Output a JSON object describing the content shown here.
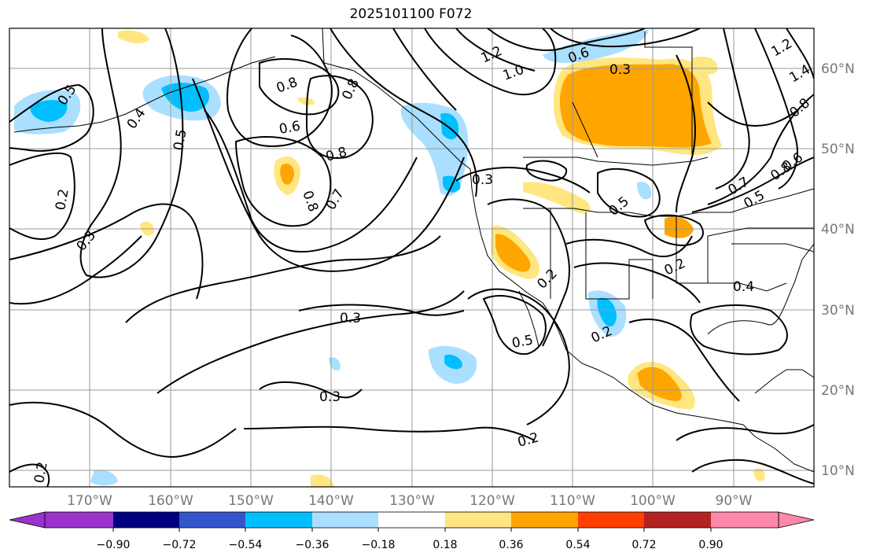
{
  "title": "2025101100 F072",
  "lon_labels": [
    "170°W",
    "160°W",
    "150°W",
    "140°W",
    "130°W",
    "120°W",
    "110°W",
    "100°W",
    "90°W"
  ],
  "lat_labels": [
    "60°N",
    "50°N",
    "40°N",
    "30°N",
    "20°N",
    "10°N"
  ],
  "colorbar": {
    "ticks": [
      "−0.90",
      "−0.72",
      "−0.54",
      "−0.36",
      "−0.18",
      "0.18",
      "0.36",
      "0.54",
      "0.72",
      "0.90"
    ],
    "colors": [
      "#9933cc",
      "#000080",
      "#3355cc",
      "#00bfff",
      "#aadfff",
      "#ffffff",
      "#ffe680",
      "#ffa500",
      "#ff4000",
      "#b22222",
      "#ff88aa"
    ]
  },
  "contour_labels": [
    "0.5",
    "0.4",
    "0.5",
    "0.8",
    "0.6",
    "0.8",
    "0.8",
    "0.7",
    "0.8",
    "0.8",
    "1.0",
    "1.2",
    "0.6",
    "0.3",
    "1.2",
    "1.4",
    "0.8",
    "0.6",
    "0.7",
    "0.5",
    "0.3",
    "0.5",
    "0.2",
    "0.3",
    "0.2",
    "0.2",
    "0.4",
    "0.3",
    "0.5",
    "0.2",
    "0.3",
    "0.2",
    "0.2"
  ]
}
